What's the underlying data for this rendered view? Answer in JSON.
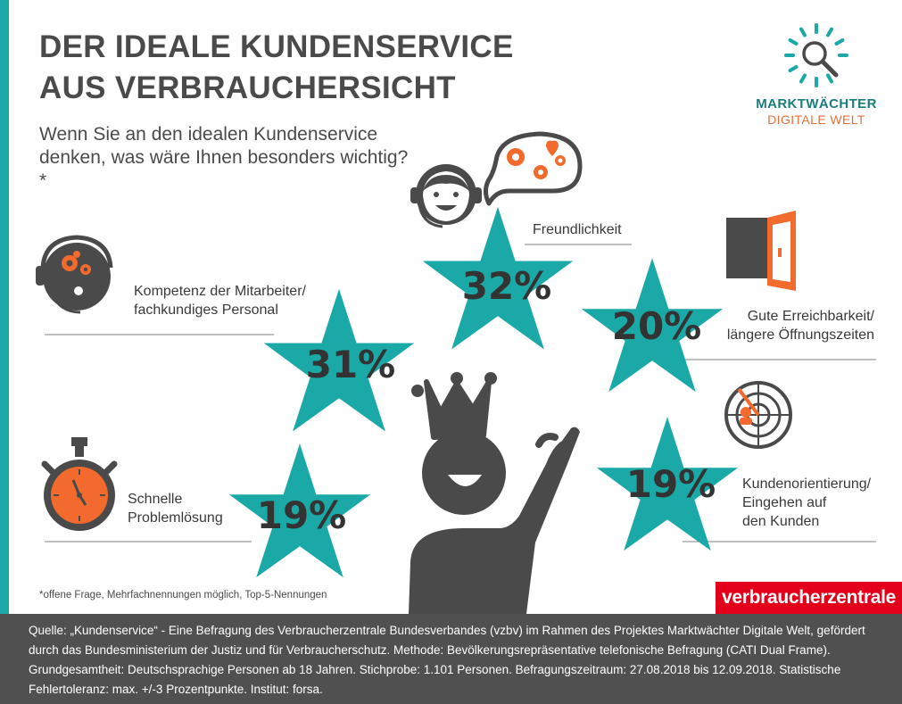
{
  "title": {
    "line1": "DER IDEALE KUNDENSERVICE",
    "line2": "AUS VERBRAUCHERSICHT"
  },
  "question": "Wenn Sie an den idealen Kundenservice denken, was wäre Ihnen besonders wichtig?*",
  "logo": {
    "line1": "MARKTWÄCHTER",
    "line2": "DIGITALE WELT"
  },
  "items": [
    {
      "label": [
        "Freundlichkeit"
      ],
      "value": "32%",
      "icon": "headset-agent-speech-bubble-icon"
    },
    {
      "label": [
        "Kompetenz der Mitarbeiter/",
        "fachkundiges Personal"
      ],
      "value": "31%",
      "icon": "head-gears-icon"
    },
    {
      "label": [
        "Gute Erreichbarkeit/",
        "längere Öffnungszeiten"
      ],
      "value": "20%",
      "icon": "open-door-icon"
    },
    {
      "label": [
        "Schnelle",
        "Problemlösung"
      ],
      "value": "19%",
      "icon": "stopwatch-icon"
    },
    {
      "label": [
        "Kundenorientierung/",
        "Eingehen auf",
        "den Kunden"
      ],
      "value": "19%",
      "icon": "radar-target-icon"
    }
  ],
  "footnote": "*offene Frage, Mehrfachnennungen möglich, Top-5-Nennungen",
  "brand": "verbraucherzentrale",
  "source": "Quelle: „Kundenservice“ - Eine Befragung des Verbraucherzentrale Bundesverbandes (vzbv) im Rahmen des Projektes Marktwächter Digitale Welt, gefördert durch das Bundesministerium der Justiz und für Verbraucherschutz. Methode: Bevölkerungsrepräsentative telefonische Befragung (CATI Dual Frame). Grundgesamtheit: Deutschsprachige Personen ab 18 Jahren. Stichprobe: 1.101 Personen. Befragungszeitraum: 27.08.2018 bis 12.09.2018. Statistische Fehlertoleranz: max. +/-3 Prozentpunkte. Institut: forsa.",
  "colors": {
    "teal": "#1aa9a6",
    "orange": "#f26a2e",
    "dark": "#4a4a4a",
    "brand_red": "#e2001a"
  }
}
